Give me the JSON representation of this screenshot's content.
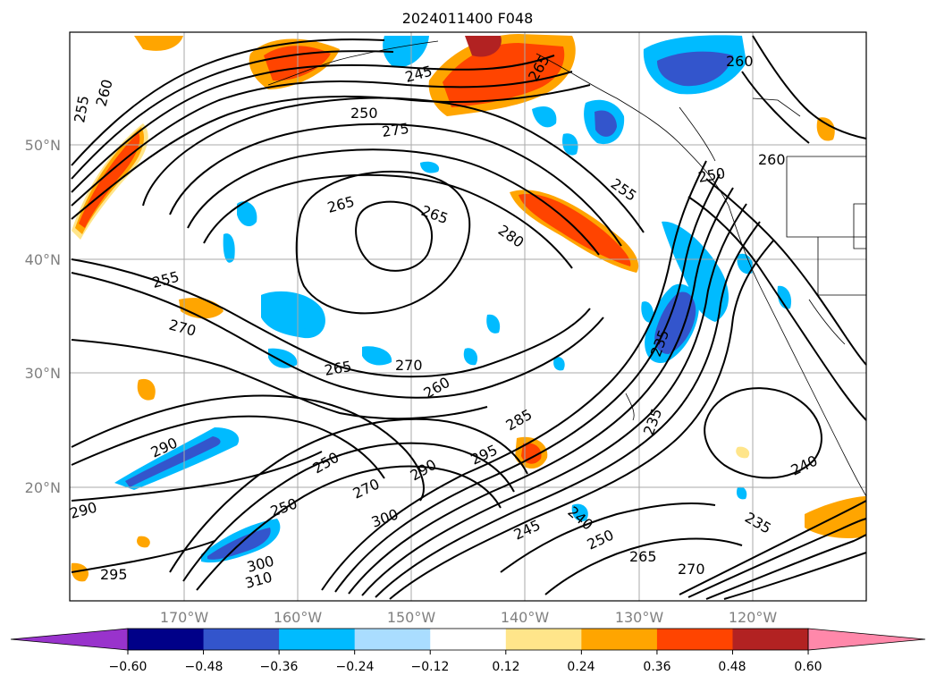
{
  "map": {
    "title": "2024011400 F048",
    "lat_labels": [
      "50°N",
      "40°N",
      "30°N",
      "20°N"
    ],
    "lon_labels": [
      "170°W",
      "160°W",
      "150°W",
      "140°W",
      "130°W",
      "120°W"
    ],
    "contour_labels": [
      "255",
      "260",
      "245",
      "265",
      "250",
      "275",
      "260",
      "265",
      "265",
      "280",
      "255",
      "260",
      "250",
      "255",
      "270",
      "265",
      "270",
      "260",
      "285",
      "295",
      "290",
      "235",
      "240",
      "235",
      "250",
      "300",
      "270",
      "250",
      "245",
      "240",
      "250",
      "265",
      "290",
      "295",
      "310",
      "300",
      "270",
      "235",
      "290"
    ]
  },
  "colorbar": {
    "ticks": [
      "−0.60",
      "−0.48",
      "−0.36",
      "−0.24",
      "−0.12",
      "0.12",
      "0.24",
      "0.36",
      "0.48",
      "0.60"
    ],
    "colors": [
      "#9933cc",
      "#000088",
      "#3355cc",
      "#00bbff",
      "#aaddff",
      "#ffffff",
      "#ffe58a",
      "#ffa500",
      "#ff4400",
      "#b22222",
      "#ff88aa"
    ]
  }
}
